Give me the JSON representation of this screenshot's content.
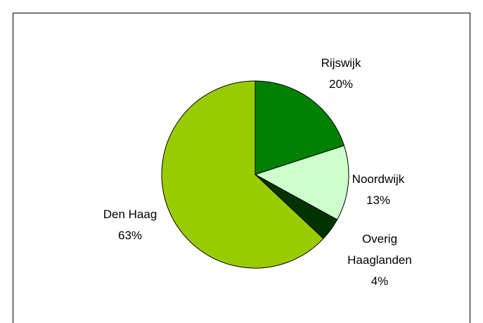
{
  "chart_data": {
    "type": "pie",
    "categories": [
      "Rijswijk",
      "Noordwijk",
      "Overig Haaglanden",
      "Den Haag"
    ],
    "values": [
      20,
      13,
      4,
      63
    ],
    "value_labels": [
      "20%",
      "13%",
      "4%",
      "63%"
    ],
    "colors": [
      "#008000",
      "#ccffcc",
      "#003300",
      "#99cc00"
    ]
  }
}
